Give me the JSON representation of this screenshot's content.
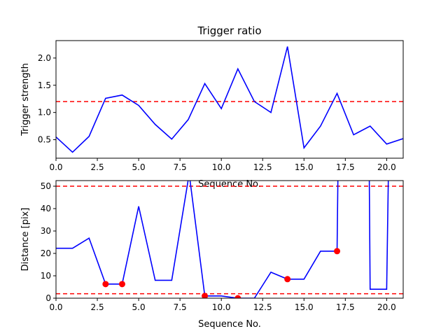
{
  "chart_data": [
    {
      "type": "line",
      "title": "Trigger ratio",
      "xlabel": "Sequence No.",
      "ylabel": "Trigger strength",
      "xlim": [
        0,
        21
      ],
      "ylim": [
        0.16,
        2.32
      ],
      "xticks": [
        0,
        2.5,
        5,
        7.5,
        10,
        12.5,
        15,
        17.5,
        20
      ],
      "xtick_labels": [
        "0.0",
        "2.5",
        "5.0",
        "7.5",
        "10.0",
        "12.5",
        "15.0",
        "17.5",
        "20.0"
      ],
      "yticks": [
        0.5,
        1.0,
        1.5,
        2.0
      ],
      "ytick_labels": [
        "0.5",
        "1.0",
        "1.5",
        "2.0"
      ],
      "grid": false,
      "series": [
        {
          "color": "#0000ff",
          "x": [
            0,
            1,
            2,
            3,
            4,
            5,
            6,
            7,
            8,
            9,
            10,
            11,
            12,
            13,
            14,
            15,
            16,
            17,
            18,
            19,
            20,
            21
          ],
          "y": [
            0.55,
            0.27,
            0.56,
            1.26,
            1.32,
            1.13,
            0.78,
            0.51,
            0.87,
            1.53,
            1.07,
            1.8,
            1.2,
            1.0,
            2.21,
            0.35,
            0.75,
            1.35,
            0.59,
            0.75,
            0.42,
            0.52
          ]
        }
      ],
      "hlines": [
        {
          "y": 1.2,
          "color": "#ff0000",
          "style": "dashed"
        }
      ]
    },
    {
      "type": "line",
      "title": "",
      "xlabel": "Sequence No.",
      "ylabel": "Distance [pix]",
      "xlim": [
        0,
        21
      ],
      "ylim": [
        0,
        52.5
      ],
      "xticks": [
        0,
        2.5,
        5,
        7.5,
        10,
        12.5,
        15,
        17.5,
        20
      ],
      "xtick_labels": [
        "0.0",
        "2.5",
        "5.0",
        "7.5",
        "10.0",
        "12.5",
        "15.0",
        "17.5",
        "20.0"
      ],
      "yticks": [
        0,
        10,
        20,
        30,
        40,
        50
      ],
      "ytick_labels": [
        "0",
        "10",
        "20",
        "30",
        "40",
        "50"
      ],
      "grid": false,
      "series": [
        {
          "color": "#0000ff",
          "segments": [
            {
              "x": [
                0,
                1,
                2,
                3,
                4,
                5,
                6,
                7,
                8,
                8.1
              ],
              "y": [
                22.3,
                22.3,
                26.8,
                6.3,
                6.3,
                41.0,
                8.0,
                8.0,
                53.0,
                53.0
              ]
            },
            {
              "x": [
                8.1,
                9,
                10,
                11,
                12,
                13,
                14,
                15,
                16,
                17,
                17.05
              ],
              "y": [
                53.0,
                1.0,
                1.0,
                0.0,
                0.0,
                11.6,
                8.5,
                8.5,
                21.0,
                21.0,
                53.0
              ]
            },
            {
              "x": [
                18.95,
                19,
                20,
                20.1
              ],
              "y": [
                53.0,
                4.0,
                4.0,
                53.0
              ]
            }
          ]
        },
        {
          "color": "#ff0000",
          "marker": "circle",
          "x": [
            3,
            4,
            9,
            11,
            14,
            17
          ],
          "y": [
            6.3,
            6.3,
            1.0,
            0.0,
            8.5,
            21.0
          ]
        }
      ],
      "hlines": [
        {
          "y": 50,
          "color": "#ff0000",
          "style": "dashed"
        },
        {
          "y": 2,
          "color": "#ff0000",
          "style": "dashed"
        }
      ]
    }
  ]
}
